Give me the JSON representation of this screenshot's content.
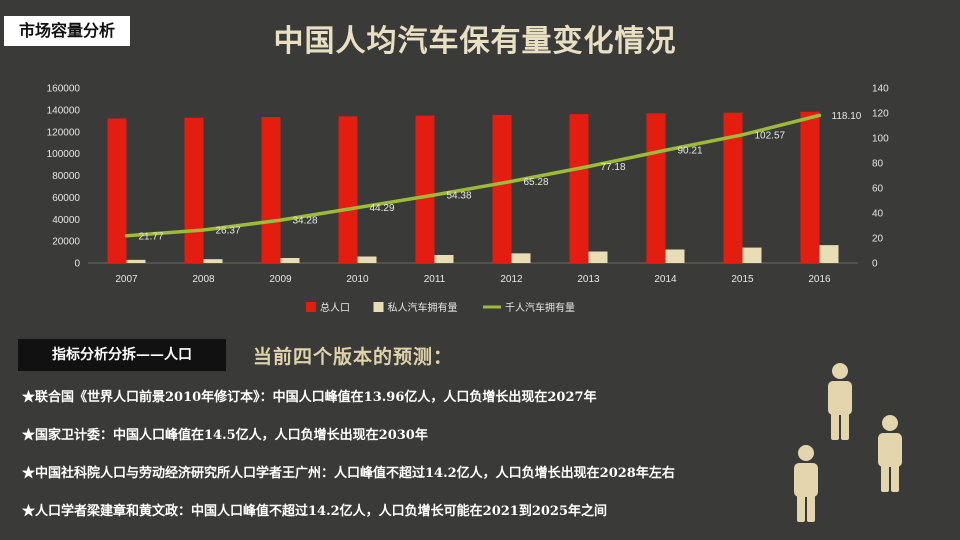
{
  "section_tag": "市场容量分析",
  "title": "中国人均汽车保有量变化情况",
  "chart_data": {
    "type": "bar",
    "categories": [
      "2007",
      "2008",
      "2009",
      "2010",
      "2011",
      "2012",
      "2013",
      "2014",
      "2015",
      "2016"
    ],
    "series": [
      {
        "name": "总人口",
        "type": "bar",
        "axis": "left",
        "color": "#e31e10",
        "values": [
          132129,
          132802,
          133450,
          134091,
          134735,
          135404,
          136072,
          136782,
          137462,
          138271
        ]
      },
      {
        "name": "私人汽车拥有量",
        "type": "bar",
        "axis": "left",
        "color": "#e8ddb5",
        "values": [
          2876,
          3501,
          4575,
          5939,
          7327,
          8839,
          10502,
          12339,
          14099,
          16330
        ]
      },
      {
        "name": "千人汽车拥有量",
        "type": "line",
        "axis": "right",
        "color": "#9dba3a",
        "values": [
          21.77,
          26.37,
          34.28,
          44.29,
          54.38,
          65.28,
          77.18,
          90.21,
          102.57,
          118.1
        ],
        "labels": [
          "21.77",
          "26.37",
          "34.28",
          "44.29",
          "54.38",
          "65.28",
          "77.18",
          "90.21",
          "102.57",
          "118.10"
        ]
      }
    ],
    "y_left": {
      "min": 0,
      "max": 160000,
      "ticks": [
        "0",
        "20000",
        "40000",
        "60000",
        "80000",
        "100000",
        "120000",
        "140000",
        "160000"
      ]
    },
    "y_right": {
      "min": 0,
      "max": 140,
      "ticks": [
        "0",
        "20",
        "40",
        "60",
        "80",
        "100",
        "120",
        "140"
      ]
    },
    "legend_position": "bottom",
    "grid": false
  },
  "analysis": {
    "tag": "指标分析分拆——人口",
    "heading": "当前四个版本的预测：",
    "points": [
      "★联合国《世界人口前景2010年修订本》：中国人口峰值在13.96亿人，人口负增长出现在2027年",
      "★国家卫计委：中国人口峰值在14.5亿人，人口负增长出现在2030年",
      "★中国社科院人口与劳动经济研究所人口学者王广州：人口峰值不超过14.2亿人，人口负增长出现在2028年左右",
      "★人口学者梁建章和黄文政：中国人口峰值不超过14.2亿人，人口负增长可能在2021到2025年之间"
    ]
  },
  "colors": {
    "background": "#3a3a38",
    "title": "#e9dfc3",
    "people_icon": "#e3d5ad"
  },
  "icons": [
    "person-icon",
    "person-icon",
    "person-icon"
  ]
}
